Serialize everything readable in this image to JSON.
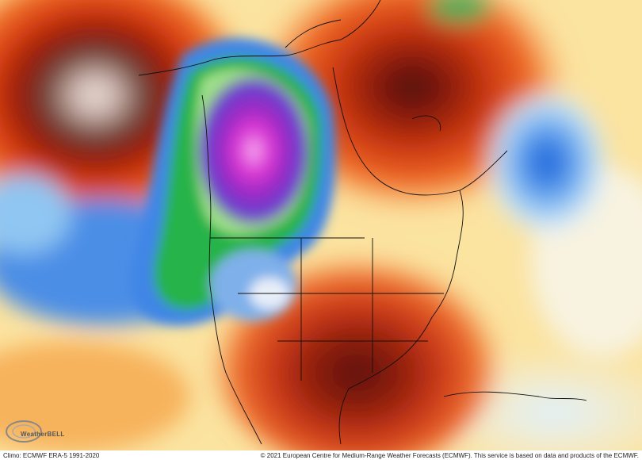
{
  "logo": "WeatherBELL",
  "footer": {
    "climo": "Climo: ECMWF ERA-5 1991-2020",
    "copyright": "© 2021 European Centre for Medium-Range Weather Forecasts (ECMWF). This service is based on data and products of the ECMWF."
  }
}
